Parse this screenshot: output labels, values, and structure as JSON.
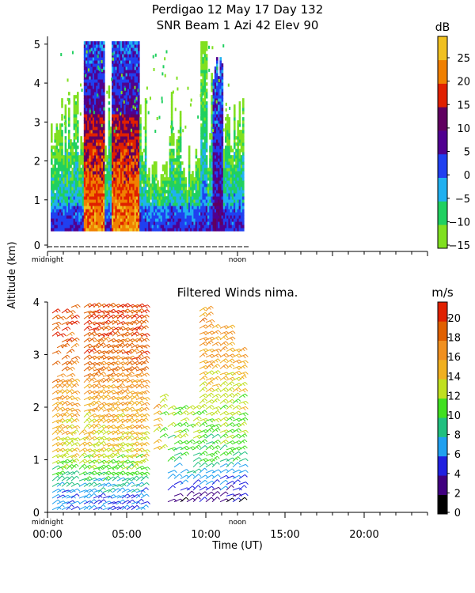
{
  "header": {
    "line1": "Perdigao  12 May 17 Day 132",
    "line2": "SNR Beam 1 Azi  42 Elev 90"
  },
  "shared": {
    "ylabel": "Altitude (km)",
    "xlabel": "Time (UT)",
    "midnight_label": "midnight",
    "noon_label": "noon"
  },
  "chart_data": [
    {
      "type": "heatmap",
      "title": "SNR Beam 1 Azi  42 Elev 90",
      "ylabel": "Altitude (km)",
      "ylim": [
        0,
        5.2
      ],
      "xlim_hours": [
        0,
        24
      ],
      "yticks": [
        "0",
        "1",
        "2",
        "3",
        "4",
        "5"
      ],
      "colorbar": {
        "unit": "dB",
        "ticks": [
          "25",
          "20",
          "15",
          "10",
          "5",
          "0",
          "−5",
          "−10",
          "−15"
        ],
        "range": [
          -15,
          30
        ],
        "colors": [
          "#80e020",
          "#20d060",
          "#20b0f0",
          "#2040f0",
          "#500090",
          "#600060",
          "#e02000",
          "#f08000",
          "#f0c020"
        ]
      },
      "data_extent_hours": [
        0.2,
        12.3
      ],
      "data_extent_km": [
        0.2,
        5.0
      ],
      "high_snr_bands": [
        {
          "start": 2.2,
          "end": 3.6,
          "peak_db": 25
        },
        {
          "start": 4.0,
          "end": 5.8,
          "peak_db": 25
        },
        {
          "start": 10.4,
          "end": 11.0,
          "peak_db": 12
        }
      ]
    },
    {
      "type": "scatter",
      "title": "Filtered Winds nima.",
      "ylabel": "Altitude (km)",
      "xlabel": "Time (UT)",
      "ylim": [
        0,
        4
      ],
      "xlim_hours": [
        0,
        24
      ],
      "yticks": [
        "0",
        "1",
        "2",
        "3",
        "4"
      ],
      "xticks": [
        "00:00",
        "05:00",
        "10:00",
        "15:00",
        "20:00"
      ],
      "colorbar": {
        "unit": "m/s",
        "ticks": [
          "20",
          "18",
          "16",
          "14",
          "12",
          "10",
          "8",
          "6",
          "4",
          "2",
          "0"
        ],
        "range": [
          0,
          22
        ],
        "colors": [
          "#000000",
          "#400080",
          "#2020e0",
          "#20a0f0",
          "#20c080",
          "#40e020",
          "#c0e020",
          "#f0b020",
          "#f09020",
          "#e06000",
          "#e02000"
        ]
      },
      "wind_columns_hours": [
        0.3,
        0.6,
        0.9,
        1.2,
        1.5,
        2.0,
        2.3,
        2.6,
        2.9,
        3.2,
        3.5,
        3.8,
        4.1,
        4.4,
        4.7,
        5.0,
        5.3,
        5.6,
        5.9,
        6.7,
        7.1,
        7.6,
        8.0,
        8.4,
        8.8,
        9.2,
        9.6,
        10.0,
        10.4,
        10.9,
        11.3,
        11.7,
        12.1
      ],
      "wind_speed_ms_by_altitude": [
        {
          "alt_km": 0.2,
          "speed": 6
        },
        {
          "alt_km": 0.6,
          "speed": 9
        },
        {
          "alt_km": 1.0,
          "speed": 13
        },
        {
          "alt_km": 1.6,
          "speed": 15
        },
        {
          "alt_km": 2.2,
          "speed": 16
        },
        {
          "alt_km": 3.0,
          "speed": 19
        },
        {
          "alt_km": 3.8,
          "speed": 20
        }
      ]
    }
  ]
}
